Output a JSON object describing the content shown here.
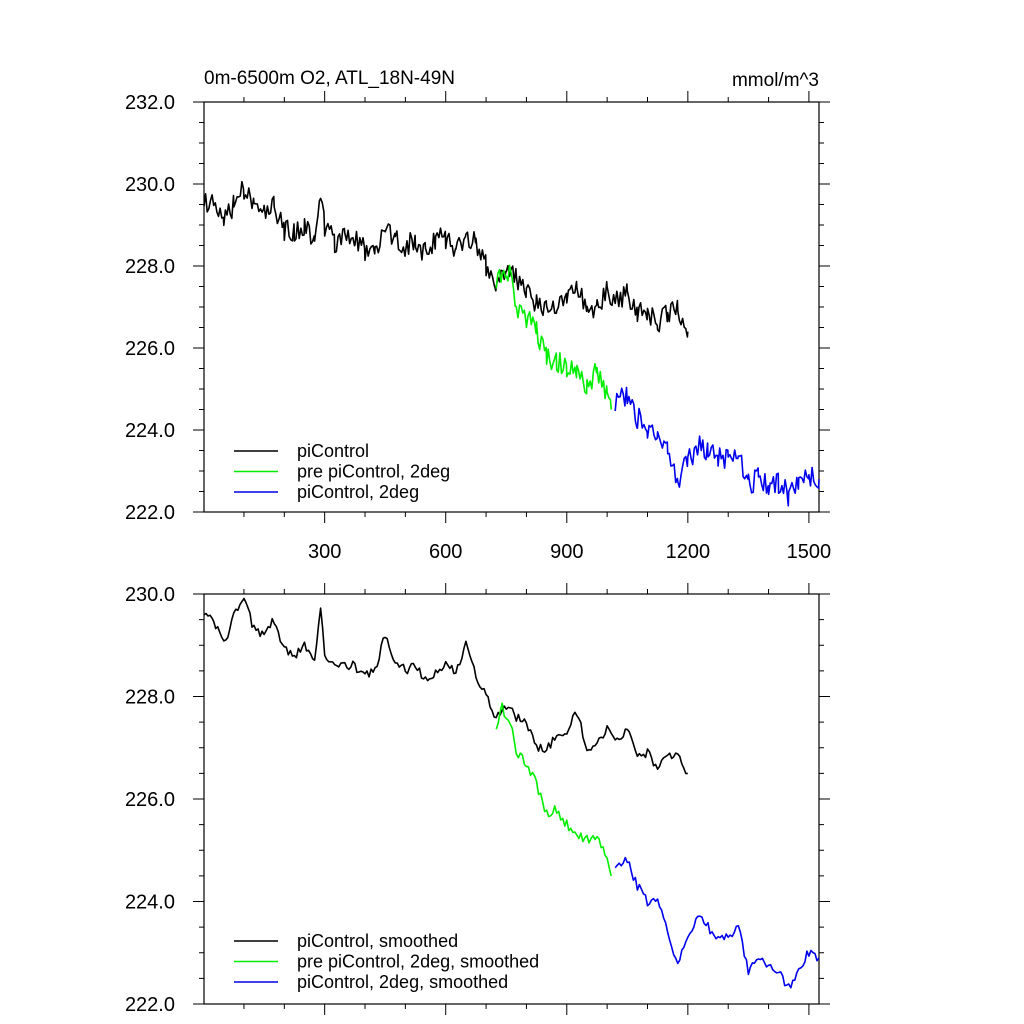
{
  "chart_data": [
    {
      "type": "line",
      "title": "0m-6500m O2, ATL_18N-49N",
      "units": "mmol/m^3",
      "xlabel": "",
      "ylabel": "",
      "xlim": [
        1,
        1525
      ],
      "ylim": [
        222.0,
        232.0
      ],
      "xticks": [
        300,
        600,
        900,
        1200,
        1500
      ],
      "xtick_labels": [
        "300",
        "600",
        "900",
        "1200",
        "1500"
      ],
      "yticks": [
        222.0,
        224.0,
        226.0,
        228.0,
        230.0,
        232.0
      ],
      "ytick_labels": [
        "222.0",
        "224.0",
        "226.0",
        "228.0",
        "230.0",
        "232.0"
      ],
      "legend_position": "bottom-left",
      "series": [
        {
          "name": "piControl",
          "color": "#000000",
          "x": [
            1,
            25,
            50,
            75,
            100,
            125,
            150,
            175,
            200,
            225,
            250,
            275,
            290,
            300,
            325,
            350,
            375,
            400,
            425,
            450,
            475,
            500,
            525,
            550,
            575,
            600,
            625,
            650,
            675,
            700,
            725,
            750,
            775,
            800,
            825,
            850,
            875,
            900,
            925,
            950,
            975,
            1000,
            1025,
            1050,
            1075,
            1100,
            1125,
            1150,
            1175,
            1200
          ],
          "values": [
            229.5,
            229.7,
            229.1,
            229.5,
            229.9,
            229.4,
            229.2,
            229.5,
            228.9,
            228.8,
            229.0,
            228.7,
            229.8,
            228.9,
            228.6,
            228.7,
            228.6,
            228.4,
            228.3,
            228.9,
            228.7,
            228.5,
            228.6,
            228.3,
            228.6,
            228.7,
            228.4,
            228.8,
            228.6,
            228.0,
            227.6,
            227.9,
            227.7,
            227.3,
            227.1,
            227.0,
            227.1,
            227.2,
            227.6,
            226.9,
            227.0,
            227.4,
            227.2,
            227.3,
            226.8,
            226.9,
            226.6,
            226.8,
            227.0,
            226.4
          ]
        },
        {
          "name": "pre piControl, 2deg",
          "color": "#00ee00",
          "x": [
            725,
            740,
            750,
            760,
            775,
            800,
            825,
            850,
            875,
            900,
            925,
            950,
            975,
            1000,
            1010
          ],
          "values": [
            227.4,
            227.9,
            227.5,
            227.8,
            227.0,
            226.7,
            226.4,
            225.8,
            225.7,
            225.5,
            225.3,
            225.1,
            225.4,
            224.9,
            224.5
          ]
        },
        {
          "name": "piControl, 2deg",
          "color": "#0000ee",
          "x": [
            1020,
            1050,
            1075,
            1100,
            1125,
            1150,
            1175,
            1200,
            1225,
            1250,
            1275,
            1300,
            1325,
            1350,
            1375,
            1400,
            1425,
            1450,
            1475,
            1500,
            1525
          ],
          "values": [
            224.6,
            224.9,
            224.3,
            224.0,
            223.9,
            223.5,
            222.8,
            223.2,
            223.6,
            223.5,
            223.4,
            223.3,
            223.4,
            222.7,
            222.8,
            222.6,
            222.7,
            222.4,
            222.7,
            222.9,
            222.8
          ]
        }
      ]
    },
    {
      "type": "line",
      "title": "",
      "xlabel": "",
      "ylabel": "",
      "xlim": [
        1,
        1525
      ],
      "ylim": [
        222.0,
        230.0
      ],
      "xticks": [
        300,
        600,
        900,
        1200,
        1500
      ],
      "yticks": [
        222.0,
        224.0,
        226.0,
        228.0,
        230.0
      ],
      "ytick_labels": [
        "222.0",
        "224.0",
        "226.0",
        "228.0",
        "230.0"
      ],
      "legend_position": "bottom-left",
      "series": [
        {
          "name": "piControl, smoothed",
          "color": "#000000",
          "x": [
            1,
            25,
            50,
            75,
            100,
            125,
            150,
            175,
            200,
            225,
            250,
            275,
            290,
            300,
            325,
            350,
            375,
            400,
            425,
            450,
            475,
            500,
            525,
            550,
            575,
            600,
            625,
            650,
            675,
            700,
            725,
            750,
            775,
            800,
            825,
            850,
            875,
            900,
            925,
            950,
            975,
            1000,
            1025,
            1050,
            1075,
            1100,
            1125,
            1150,
            1175,
            1200
          ],
          "values": [
            229.6,
            229.5,
            229.0,
            229.6,
            229.9,
            229.3,
            229.2,
            229.5,
            228.9,
            228.8,
            229.0,
            228.7,
            229.8,
            228.8,
            228.7,
            228.6,
            228.6,
            228.4,
            228.5,
            229.2,
            228.7,
            228.5,
            228.6,
            228.3,
            228.5,
            228.6,
            228.5,
            229.0,
            228.4,
            228.0,
            227.6,
            227.8,
            227.6,
            227.5,
            227.0,
            227.0,
            227.2,
            227.3,
            227.7,
            227.0,
            227.1,
            227.4,
            227.2,
            227.3,
            226.9,
            226.9,
            226.6,
            226.8,
            226.9,
            226.5
          ]
        },
        {
          "name": "pre piControl, 2deg, smoothed",
          "color": "#00ee00",
          "x": [
            725,
            740,
            750,
            760,
            775,
            800,
            825,
            850,
            875,
            900,
            925,
            950,
            975,
            1000,
            1010
          ],
          "values": [
            227.4,
            227.8,
            227.6,
            227.5,
            226.9,
            226.7,
            226.3,
            225.7,
            225.8,
            225.5,
            225.3,
            225.2,
            225.3,
            224.8,
            224.5
          ]
        },
        {
          "name": "piControl, 2deg, smoothed",
          "color": "#0000ee",
          "x": [
            1020,
            1050,
            1075,
            1100,
            1125,
            1150,
            1175,
            1200,
            1225,
            1250,
            1275,
            1300,
            1325,
            1350,
            1375,
            1400,
            1425,
            1450,
            1475,
            1500,
            1525
          ],
          "values": [
            224.6,
            224.8,
            224.3,
            224.0,
            224.0,
            223.4,
            222.8,
            223.3,
            223.7,
            223.5,
            223.3,
            223.3,
            223.5,
            222.6,
            222.9,
            222.7,
            222.6,
            222.3,
            222.7,
            223.0,
            222.9
          ]
        }
      ]
    }
  ]
}
